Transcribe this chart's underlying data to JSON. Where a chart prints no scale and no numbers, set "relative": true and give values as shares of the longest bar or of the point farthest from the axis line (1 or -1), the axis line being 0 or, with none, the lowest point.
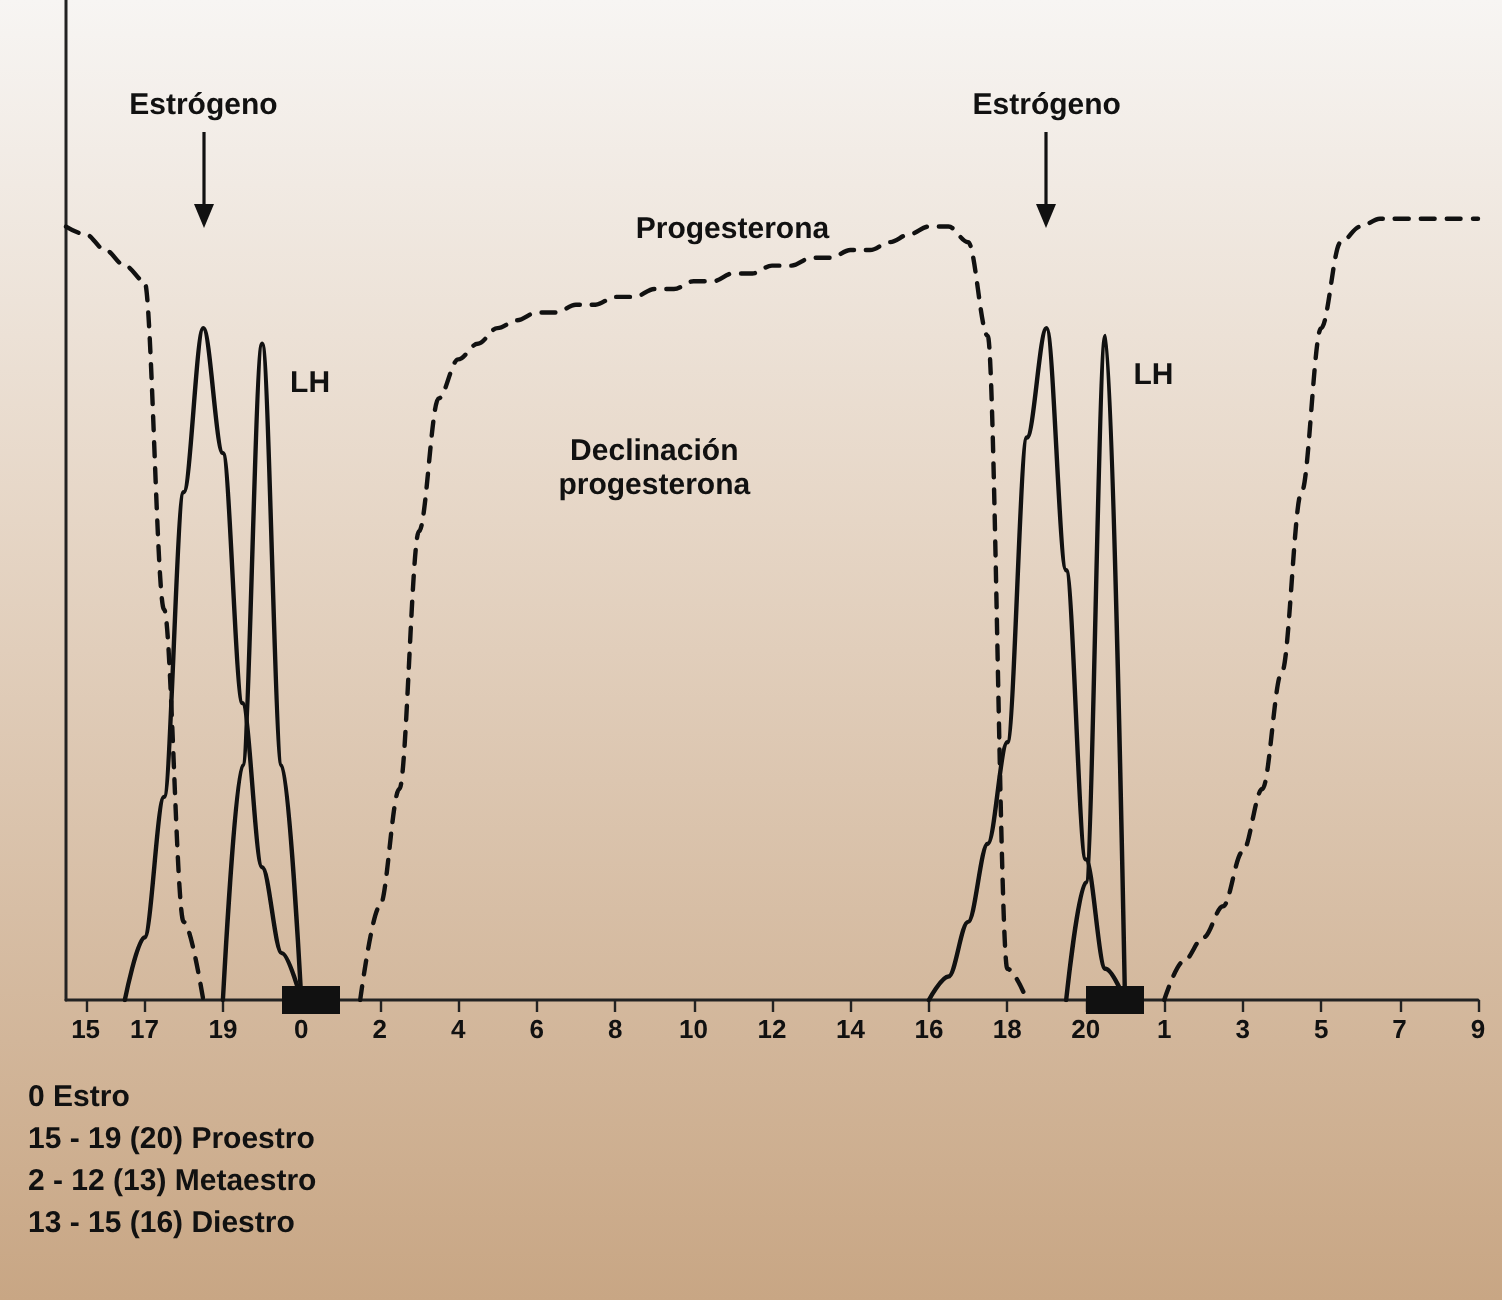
{
  "chart_data": {
    "type": "line",
    "relative": true,
    "marker": "none",
    "categories": [
      null,
      "15",
      null,
      null,
      "17",
      null,
      null,
      null,
      "19",
      null,
      null,
      null,
      "0",
      null,
      null,
      null,
      "2",
      null,
      null,
      null,
      "4",
      null,
      null,
      null,
      "6",
      null,
      null,
      null,
      "8",
      null,
      null,
      null,
      "10",
      null,
      null,
      null,
      "12",
      null,
      null,
      null,
      "14",
      null,
      null,
      null,
      "16",
      null,
      null,
      null,
      "18",
      null,
      null,
      null,
      "20",
      null,
      null,
      null,
      "1",
      null,
      null,
      null,
      "3",
      null,
      null,
      null,
      "5",
      null,
      null,
      null,
      "7",
      null,
      null,
      null,
      "9"
    ],
    "series": [
      {
        "color": "#111111",
        "line_style": "solid",
        "values": [
          null,
          null,
          null,
          0,
          0.08,
          0.26,
          0.65,
          0.86,
          0.7,
          0.38,
          0.17,
          0.06,
          0,
          null,
          null,
          null,
          null,
          null,
          null,
          null,
          null,
          null,
          null,
          null,
          null,
          null,
          null,
          null,
          null,
          null,
          null,
          null,
          null,
          null,
          null,
          null,
          null,
          null,
          null,
          null,
          null,
          null,
          null,
          null,
          null,
          null,
          null,
          null,
          null,
          null,
          null,
          null,
          null,
          null,
          null,
          null,
          null,
          null,
          null,
          null,
          null,
          null,
          null,
          null,
          null,
          null,
          null,
          null,
          null,
          null,
          null,
          null,
          null
        ]
      },
      {
        "name": "LH",
        "color": "#111111",
        "line_style": "solid",
        "values": [
          null,
          null,
          null,
          null,
          null,
          null,
          null,
          null,
          0,
          0.3,
          0.84,
          0.3,
          0,
          null,
          null,
          null,
          null,
          null,
          null,
          null,
          null,
          null,
          null,
          null,
          null,
          null,
          null,
          null,
          null,
          null,
          null,
          null,
          null,
          null,
          null,
          null,
          null,
          null,
          null,
          null,
          null,
          null,
          null,
          null,
          null,
          null,
          null,
          null,
          null,
          null,
          null,
          null,
          null,
          null,
          null,
          null,
          null,
          null,
          null,
          null,
          null,
          null,
          null,
          null,
          null,
          null,
          null,
          null,
          null,
          null,
          null,
          null,
          null
        ]
      },
      {
        "color": "#111111",
        "line_style": "solid",
        "values": [
          null,
          null,
          null,
          null,
          null,
          null,
          null,
          null,
          null,
          null,
          null,
          null,
          null,
          null,
          null,
          null,
          null,
          null,
          null,
          null,
          null,
          null,
          null,
          null,
          null,
          null,
          null,
          null,
          null,
          null,
          null,
          null,
          null,
          null,
          null,
          null,
          null,
          null,
          null,
          null,
          null,
          null,
          null,
          null,
          0,
          0.03,
          0.1,
          0.2,
          0.33,
          0.72,
          0.86,
          0.55,
          0.18,
          0.04,
          0,
          null,
          null,
          null,
          null,
          null,
          null,
          null,
          null,
          null,
          null,
          null,
          null,
          null,
          null,
          null,
          null,
          null,
          null
        ]
      },
      {
        "name": "LH",
        "color": "#111111",
        "line_style": "solid",
        "values": [
          null,
          null,
          null,
          null,
          null,
          null,
          null,
          null,
          null,
          null,
          null,
          null,
          null,
          null,
          null,
          null,
          null,
          null,
          null,
          null,
          null,
          null,
          null,
          null,
          null,
          null,
          null,
          null,
          null,
          null,
          null,
          null,
          null,
          null,
          null,
          null,
          null,
          null,
          null,
          null,
          null,
          null,
          null,
          null,
          null,
          null,
          null,
          null,
          null,
          null,
          null,
          0,
          0.15,
          0.85,
          0,
          null,
          null,
          null,
          null,
          null,
          null,
          null,
          null,
          null,
          null,
          null,
          null,
          null,
          null,
          null,
          null,
          null,
          null
        ]
      },
      {
        "name": "Progesterona",
        "color": "#111111",
        "line_style": "dashed",
        "values": [
          0.99,
          0.98,
          0.96,
          0.94,
          0.92,
          0.5,
          0.1,
          0,
          null,
          null,
          null,
          null,
          null,
          null,
          null,
          0,
          0.12,
          0.27,
          0.6,
          0.77,
          0.82,
          0.84,
          0.86,
          0.87,
          0.88,
          0.88,
          0.89,
          0.89,
          0.9,
          0.9,
          0.91,
          0.91,
          0.92,
          0.92,
          0.93,
          0.93,
          0.94,
          0.94,
          0.95,
          0.95,
          0.96,
          0.96,
          0.97,
          0.98,
          0.99,
          0.99,
          0.97,
          0.85,
          0.04,
          0,
          null,
          null,
          null,
          null,
          null,
          null,
          0,
          0.05,
          0.08,
          0.12,
          0.19,
          0.27,
          0.42,
          0.65,
          0.86,
          0.97,
          0.99,
          1,
          1,
          1,
          1,
          1,
          1
        ]
      }
    ],
    "annotations": [
      "Estrógeno",
      "Estrógeno",
      "Declinación progesterona",
      "0  Estro",
      "15 - 19 (20) Proestro",
      "2 - 12 (13) Metaestro",
      "13 - 15 (16) Diestro"
    ]
  }
}
